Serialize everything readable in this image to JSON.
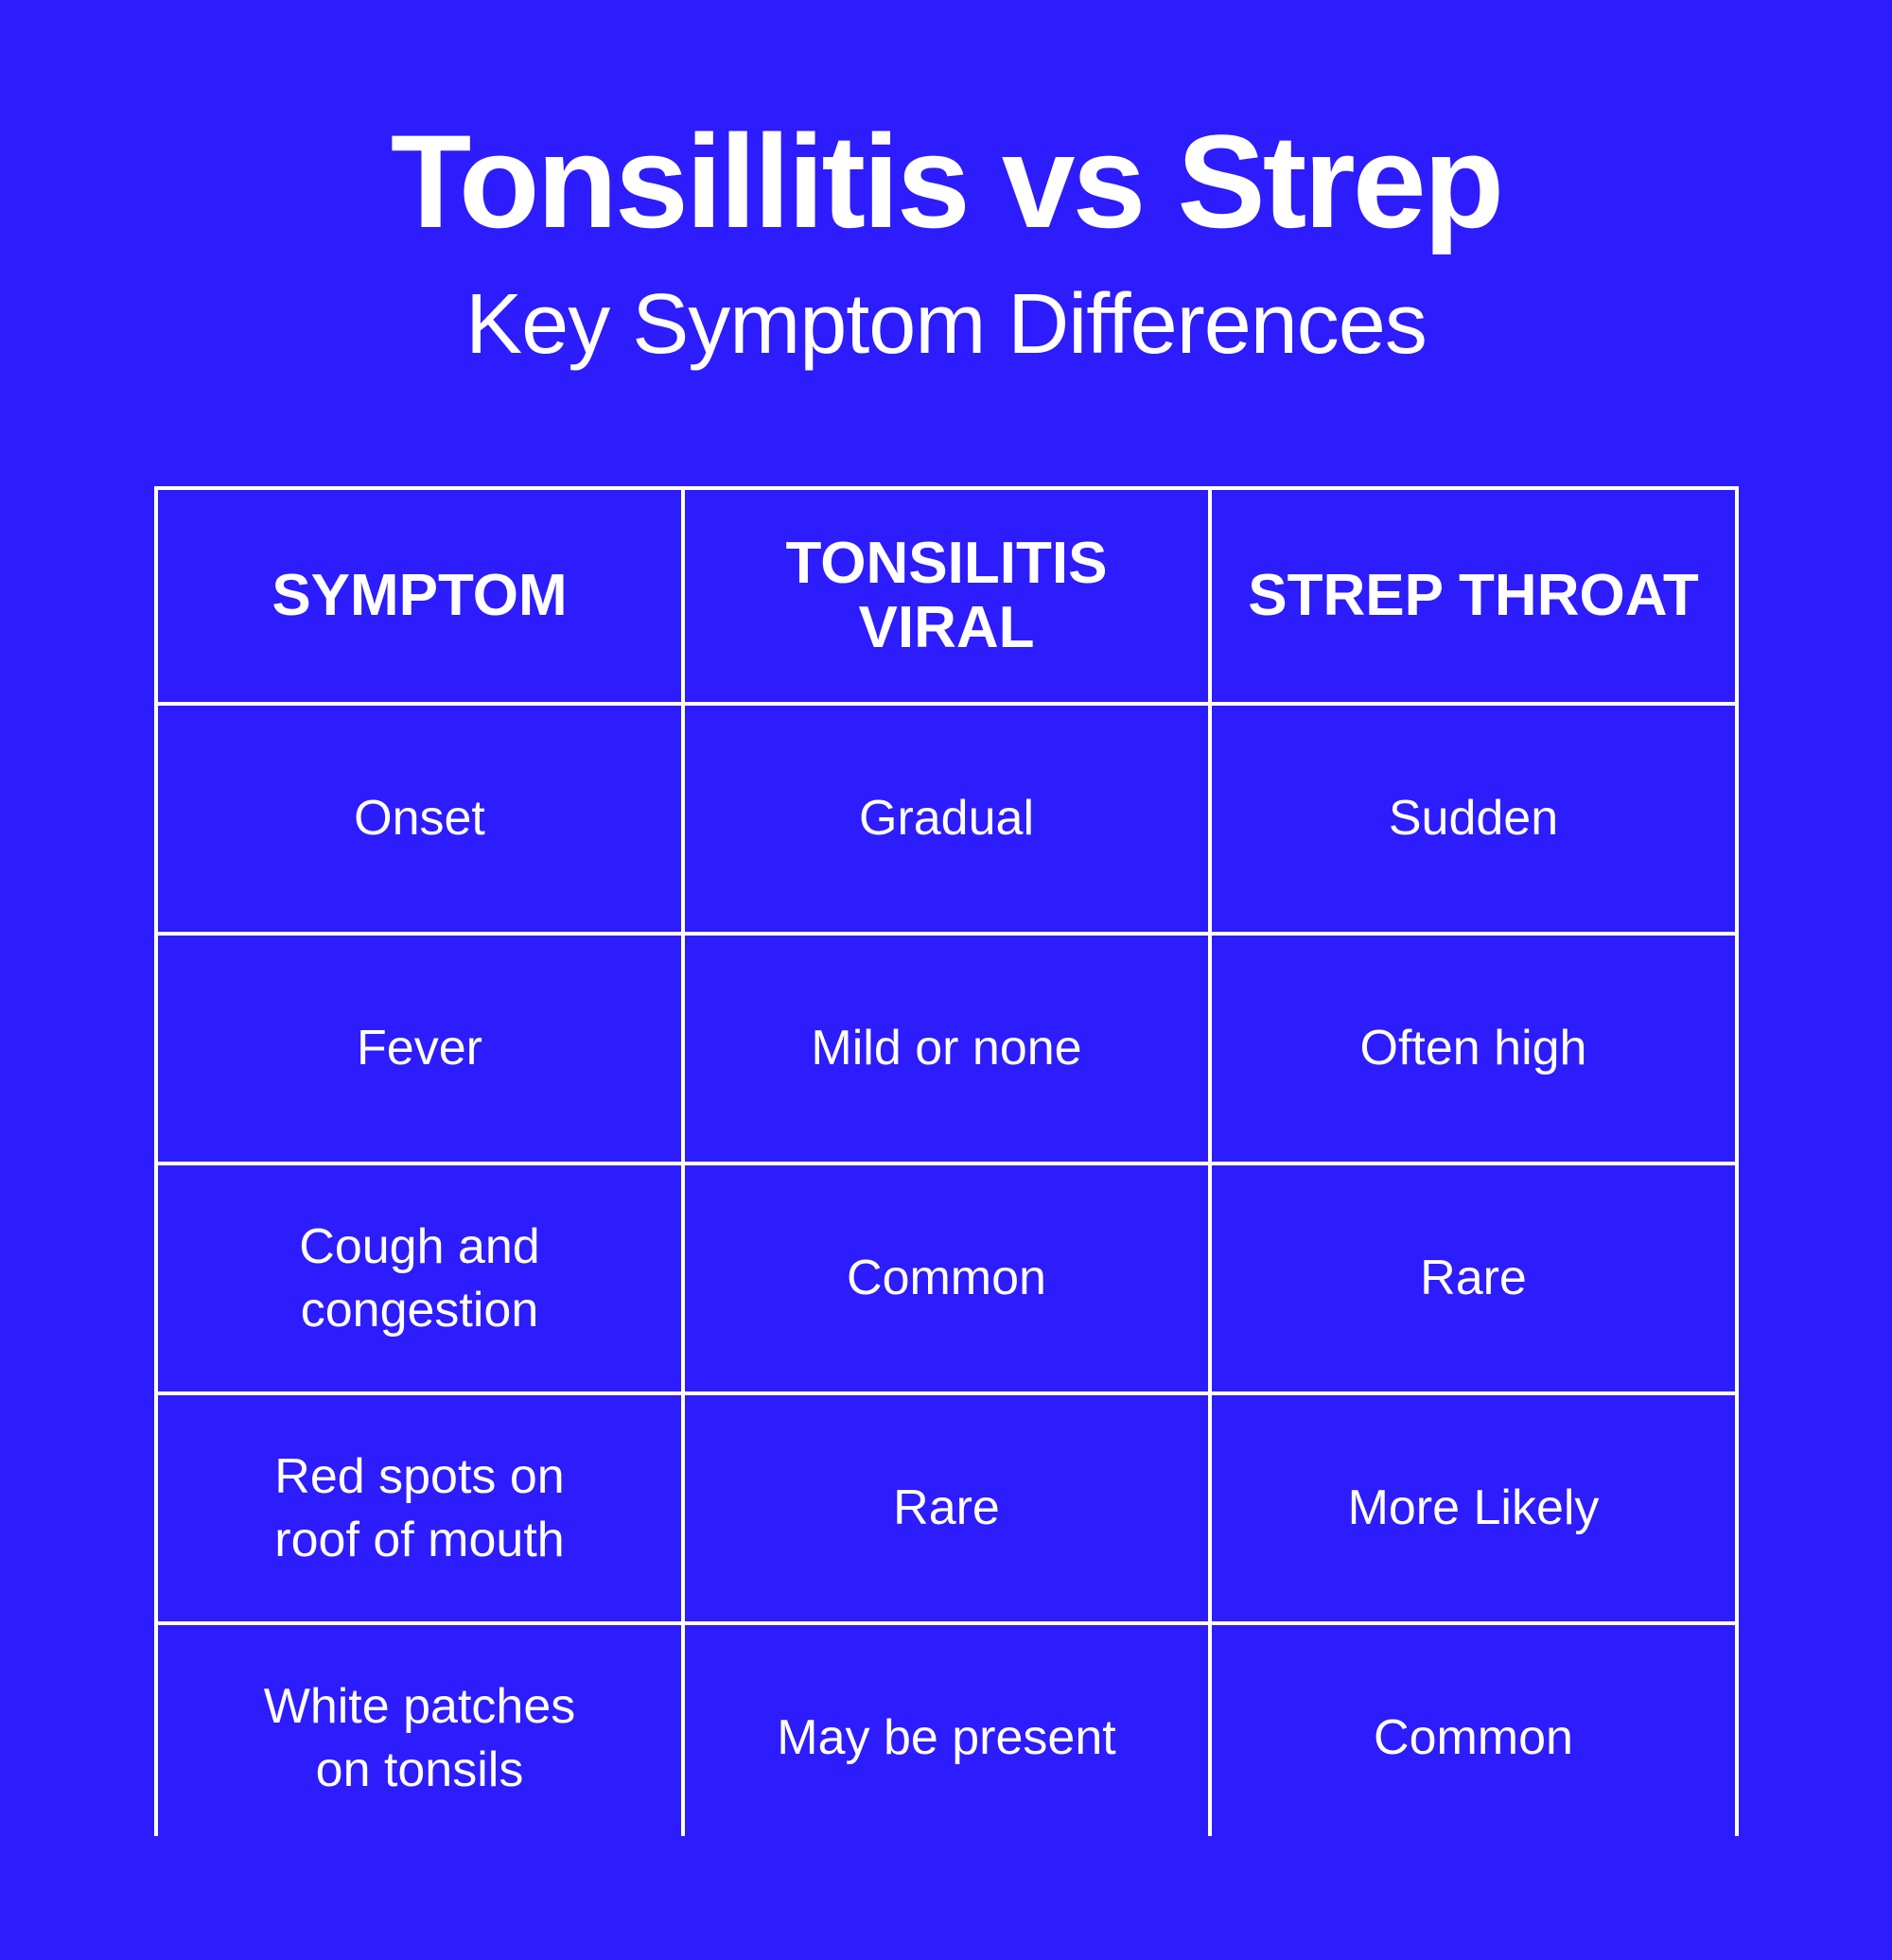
{
  "title": "Tonsillitis vs Strep",
  "subtitle": "Key Symptom Differences",
  "table": {
    "headers": [
      "SYMPTOM",
      "TONSILITIS VIRAL",
      "STREP THROAT"
    ],
    "rows": [
      [
        "Onset",
        "Gradual",
        "Sudden"
      ],
      [
        "Fever",
        "Mild or none",
        "Often high"
      ],
      [
        "Cough and congestion",
        "Common",
        "Rare"
      ],
      [
        "Red spots on roof of mouth",
        "Rare",
        "More Likely"
      ],
      [
        "White patches on tonsils",
        "May be present",
        "Common"
      ]
    ]
  },
  "colors": {
    "background": "#2d1cfc",
    "text": "#ffffff",
    "grid_lines": "#ffffff"
  }
}
